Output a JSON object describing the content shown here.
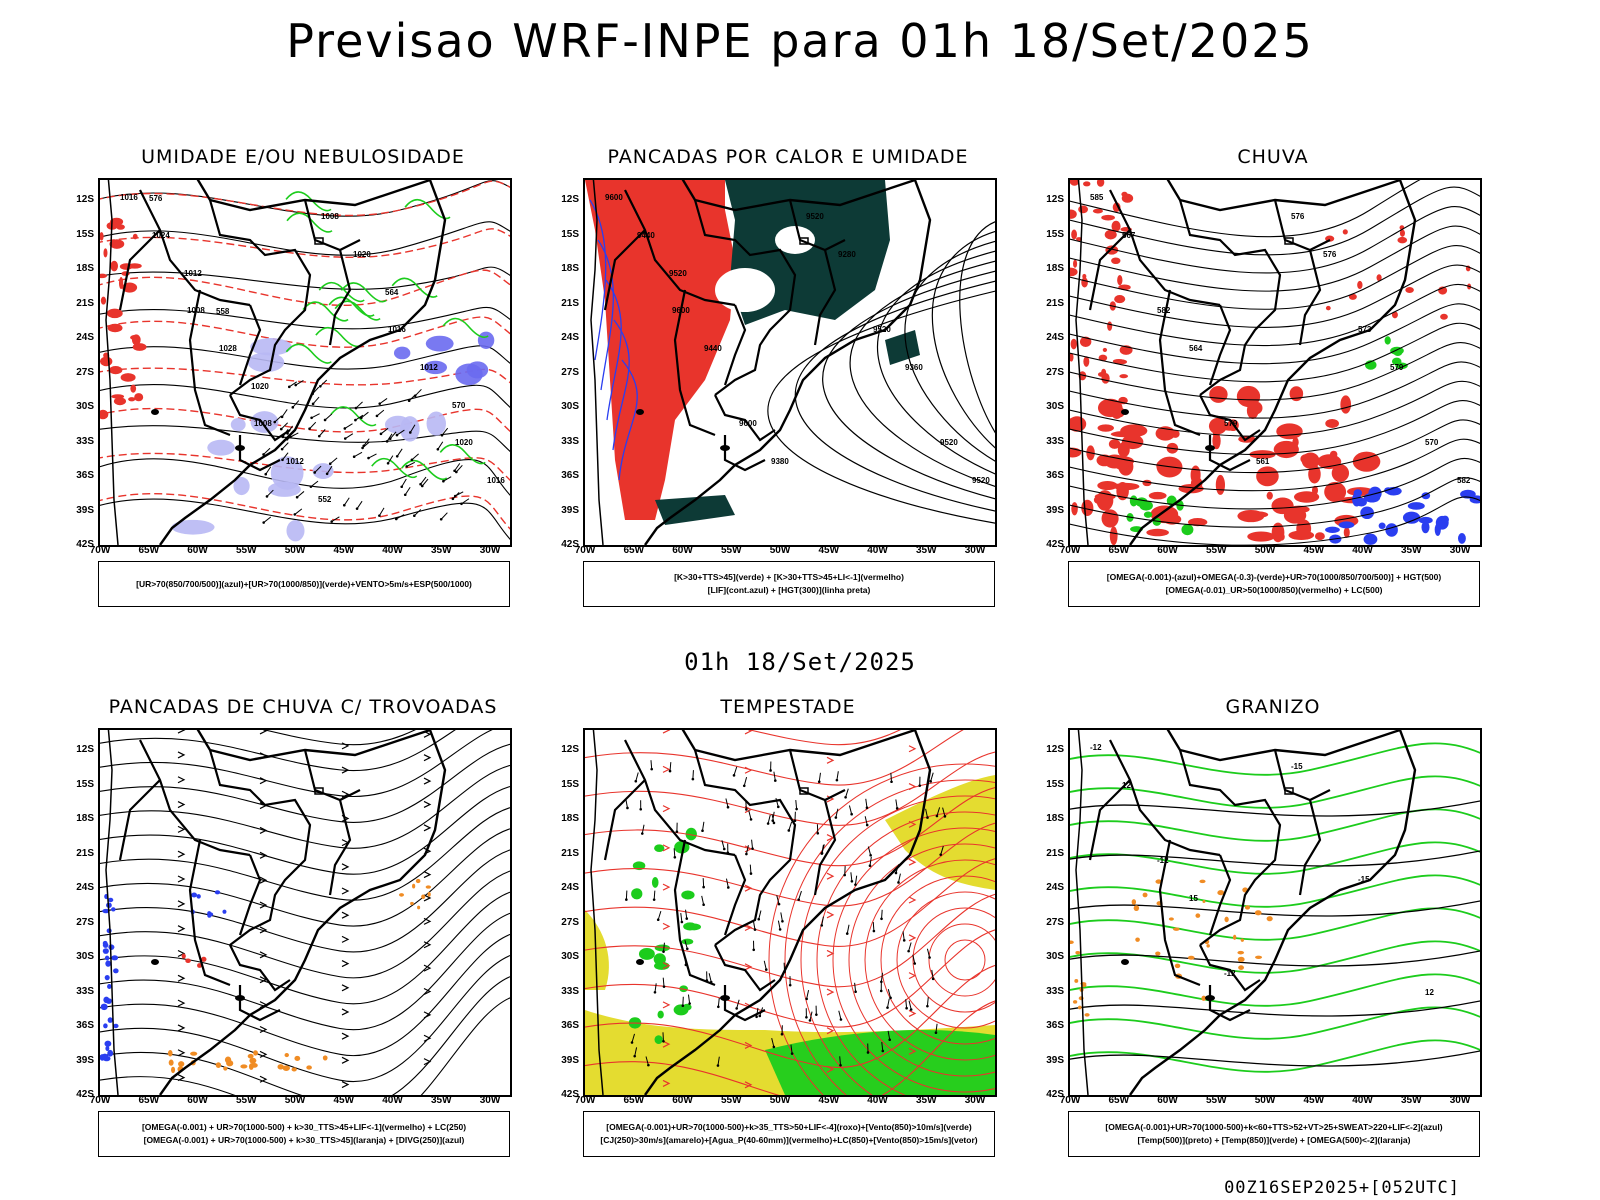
{
  "title": "Previsao WRF-INPE  para 01h 18/Set/2025",
  "mid_title": "01h 18/Set/2025",
  "footer": "00Z16SEP2025+[052UTC]",
  "axes": {
    "lat_labels": [
      "12S",
      "15S",
      "18S",
      "21S",
      "24S",
      "27S",
      "30S",
      "33S",
      "36S",
      "39S",
      "42S"
    ],
    "lon_labels": [
      "70W",
      "65W",
      "60W",
      "55W",
      "50W",
      "45W",
      "40W",
      "35W",
      "30W"
    ]
  },
  "colors": {
    "green": "#1ccc1c",
    "red": "#e8342c",
    "blue": "#2a3ef0",
    "lavender": "#b8b8f4",
    "darkteal": "#0d3a36",
    "yellow": "#e4dc30",
    "orange": "#f08c24"
  },
  "panels": [
    {
      "id": "p1",
      "title": "UMIDADE E/OU NEBULOSIDADE",
      "caption": [
        "[UR>70(850/700/500)](azul)+[UR>70(1000/850)](verde)+VENTO>5m/s+ESP(500/1000)"
      ],
      "contour_labels": [
        "1016",
        "1008",
        "1008",
        "1008",
        "1016",
        "1020",
        "1024",
        "1028",
        "1012",
        "1020",
        "1012",
        "1016",
        "1012",
        "1020",
        "552",
        "564",
        "570",
        "576",
        "558"
      ]
    },
    {
      "id": "p2",
      "title": "PANCADAS POR CALOR E UMIDADE",
      "caption": [
        "[K>30+TTS>45](verde) + [K>30+TTS>45+LI<-1](vermelho)",
        "[LIF](cont.azul) + [HGT(300)](linha preta)"
      ],
      "contour_labels": [
        "9600",
        "9600",
        "9600",
        "9520",
        "9520",
        "9520",
        "9440",
        "9440",
        "9380",
        "9280",
        "9360",
        "9520",
        "9520"
      ]
    },
    {
      "id": "p3",
      "title": "CHUVA",
      "caption": [
        "[OMEGA(-0.001)-(azul)+OMEGA(-0.3)-(verde)+UR>70(1000/850/700/500)] + HGT(500)",
        "[OMEGA(-0.01)_UR>50(1000/850)(vermelho) + LC(500)"
      ],
      "contour_labels": [
        "585",
        "582",
        "579",
        "576",
        "573",
        "570",
        "567",
        "564",
        "561",
        "576",
        "579",
        "582"
      ]
    },
    {
      "id": "p4",
      "title": "PANCADAS DE CHUVA C/ TROVOADAS",
      "caption": [
        "[OMEGA(-0.001) + UR>70(1000-500) + k>30_TTS>45+LIF<-1](vermelho) + LC(250)",
        "[OMEGA(-0.001) + UR>70(1000-500) + k>30_TTS>45](laranja) + [DIVG(250)](azul)"
      ],
      "contour_labels": []
    },
    {
      "id": "p5",
      "title": "TEMPESTADE",
      "caption": [
        "[OMEGA(-0.001)+UR>70(1000-500)+k>35_TTS>50+LIF<-4](roxo)+[Vento(850)>10m/s](verde)",
        "[CJ(250)>30m/s](amarelo)+[Agua_P(40-60mm)](vermelho)+LC(850)+[Vento(850)>15m/s](vetor)"
      ],
      "contour_labels": []
    },
    {
      "id": "p6",
      "title": "GRANIZO",
      "caption": [
        "[OMEGA(-0.001)+UR>70(1000-500)+k<60+TTS>52+VT>25+SWEAT>220+LIF<-2](azul)",
        "[Temp(500)](preto) + [Temp(850)](verde) + [OMEGA(500)<-2](laranja)"
      ],
      "contour_labels": [
        "-12",
        "-12",
        "-12",
        "-15",
        "-15",
        "12",
        "12",
        "15"
      ]
    }
  ]
}
